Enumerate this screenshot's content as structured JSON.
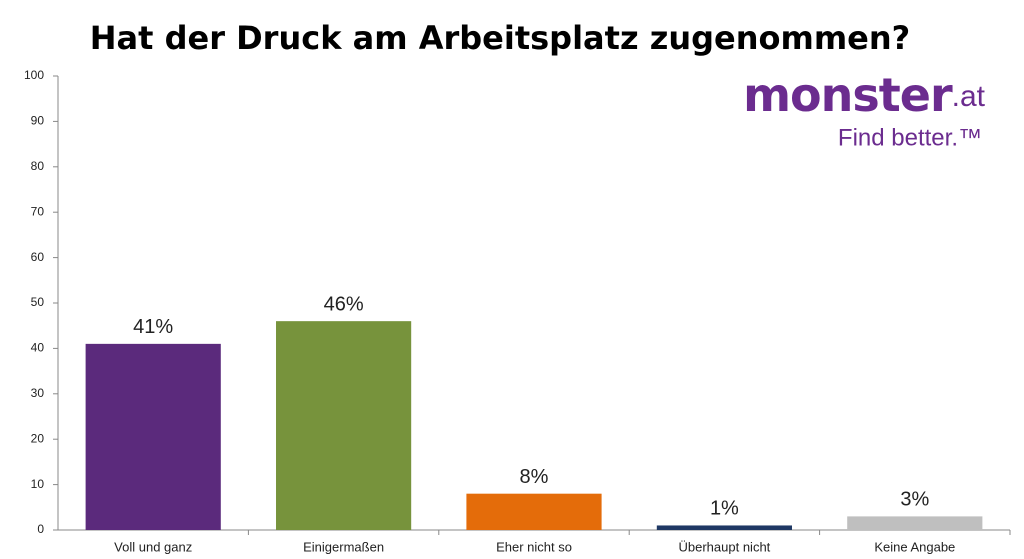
{
  "chart_data": {
    "type": "bar",
    "title": "Hat der Druck am Arbeitsplatz zugenommen?",
    "logo": {
      "name": "monster",
      "suffix": ".at",
      "tagline": "Find better.™"
    },
    "categories": [
      "Voll und ganz",
      "Einigermaßen",
      "Eher nicht so",
      "Überhaupt nicht",
      "Keine Angabe"
    ],
    "values": [
      41,
      46,
      8,
      1,
      3
    ],
    "value_labels": [
      "41%",
      "46%",
      "8%",
      "1%",
      "3%"
    ],
    "colors": [
      "#5b2a7c",
      "#77933c",
      "#e46c0a",
      "#1f3864",
      "#bfbfbf"
    ],
    "ylim": [
      0,
      100
    ],
    "yticks": [
      0,
      10,
      20,
      30,
      40,
      50,
      60,
      70,
      80,
      90,
      100
    ],
    "grid": false
  }
}
